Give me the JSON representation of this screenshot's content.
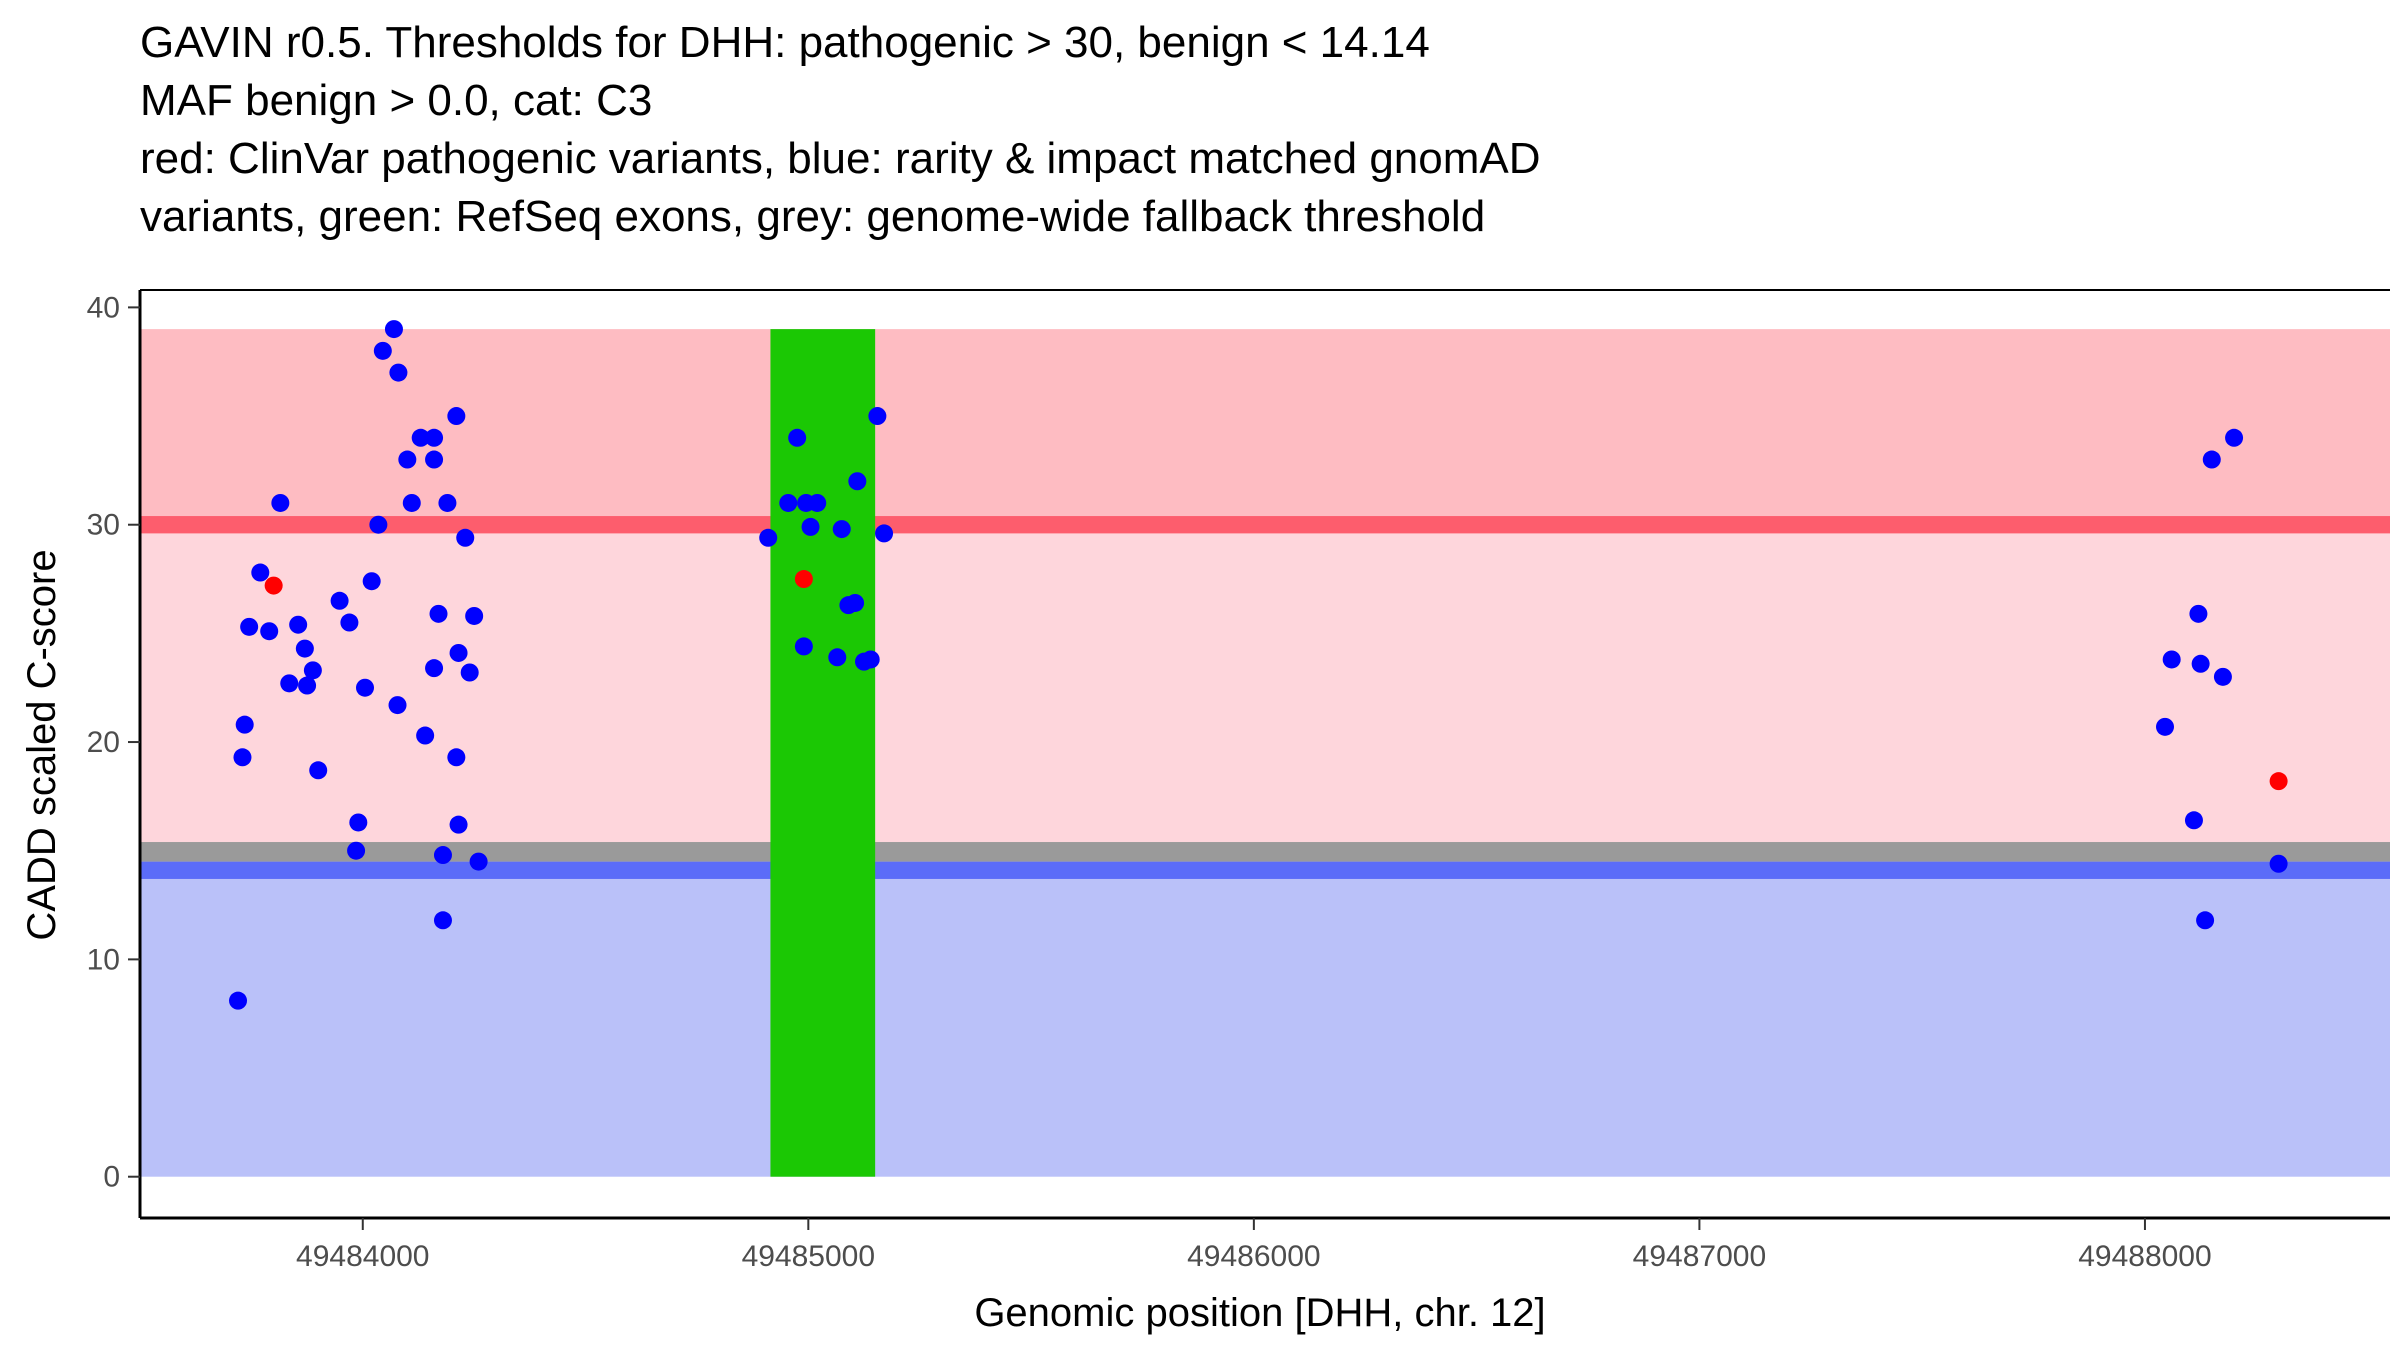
{
  "chart_data": {
    "type": "scatter",
    "title_lines": [
      "GAVIN r0.5. Thresholds for DHH: pathogenic > 30, benign < 14.14",
      "MAF benign > 0.0, cat: C3",
      "red: ClinVar pathogenic variants, blue: rarity & impact matched gnomAD",
      "variants, green: RefSeq exons, grey: genome-wide fallback threshold"
    ],
    "xlabel": "Genomic position [DHH, chr. 12]",
    "ylabel": "CADD scaled C-score",
    "xlim": [
      49483500,
      49488550
    ],
    "ylim": [
      -1.9,
      40.8
    ],
    "x_ticks": [
      49484000,
      49485000,
      49486000,
      49487000,
      49488000
    ],
    "x_tick_labels": [
      "49484000",
      "49485000",
      "49486000",
      "49487000",
      "49488000"
    ],
    "y_ticks": [
      0,
      10,
      20,
      30,
      40
    ],
    "y_tick_labels": [
      "0",
      "10",
      "20",
      "30",
      "40"
    ],
    "bands": [
      {
        "name": "benign-region",
        "y0": 0,
        "y1": 13.7,
        "color": "#bac1f9"
      },
      {
        "name": "benign-threshold",
        "y0": 13.7,
        "y1": 14.5,
        "color": "#5b6cf8"
      },
      {
        "name": "fallback-threshold",
        "y0": 14.5,
        "y1": 15.4,
        "color": "#9a9a9a"
      },
      {
        "name": "intermediate-region",
        "y0": 15.4,
        "y1": 29.6,
        "color": "#fed6dc"
      },
      {
        "name": "pathogenic-threshold",
        "y0": 29.6,
        "y1": 30.4,
        "color": "#fd5d6d"
      },
      {
        "name": "pathogenic-region",
        "y0": 30.4,
        "y1": 39,
        "color": "#febcc2"
      }
    ],
    "exons": [
      {
        "x0": 49484915,
        "x1": 49485150,
        "y0": 0,
        "y1": 39,
        "color": "#1bc804"
      }
    ],
    "series": [
      {
        "name": "gnomAD variants",
        "color": "#0000fe",
        "points": [
          [
            49483720,
            8.1
          ],
          [
            49483730,
            19.3
          ],
          [
            49483735,
            20.8
          ],
          [
            49483745,
            25.3
          ],
          [
            49483770,
            27.8
          ],
          [
            49483790,
            25.1
          ],
          [
            49483815,
            31.0
          ],
          [
            49483835,
            22.7
          ],
          [
            49483855,
            25.4
          ],
          [
            49483870,
            24.3
          ],
          [
            49483875,
            22.6
          ],
          [
            49483888,
            23.3
          ],
          [
            49483900,
            18.7
          ],
          [
            49483948,
            26.5
          ],
          [
            49483970,
            25.5
          ],
          [
            49483985,
            15.0
          ],
          [
            49483990,
            16.3
          ],
          [
            49484005,
            22.5
          ],
          [
            49484020,
            27.4
          ],
          [
            49484035,
            30.0
          ],
          [
            49484045,
            38.0
          ],
          [
            49484070,
            39.0
          ],
          [
            49484078,
            21.7
          ],
          [
            49484080,
            37.0
          ],
          [
            49484100,
            33.0
          ],
          [
            49484110,
            31.0
          ],
          [
            49484130,
            34.0
          ],
          [
            49484140,
            20.3
          ],
          [
            49484160,
            23.4
          ],
          [
            49484160,
            34.0
          ],
          [
            49484160,
            33.0
          ],
          [
            49484170,
            25.9
          ],
          [
            49484180,
            14.8
          ],
          [
            49484180,
            11.8
          ],
          [
            49484190,
            31.0
          ],
          [
            49484210,
            35.0
          ],
          [
            49484210,
            19.3
          ],
          [
            49484215,
            16.2
          ],
          [
            49484215,
            24.1
          ],
          [
            49484230,
            29.4
          ],
          [
            49484240,
            23.2
          ],
          [
            49484250,
            25.8
          ],
          [
            49484260,
            14.5
          ],
          [
            49484910,
            29.4
          ],
          [
            49484955,
            31.0
          ],
          [
            49484975,
            34.0
          ],
          [
            49484990,
            24.4
          ],
          [
            49484995,
            31.0
          ],
          [
            49485005,
            29.9
          ],
          [
            49485020,
            31.0
          ],
          [
            49485065,
            23.9
          ],
          [
            49485075,
            29.8
          ],
          [
            49485090,
            26.3
          ],
          [
            49485105,
            26.4
          ],
          [
            49485110,
            32.0
          ],
          [
            49485125,
            23.7
          ],
          [
            49485140,
            23.8
          ],
          [
            49485155,
            35.0
          ],
          [
            49485170,
            29.6
          ],
          [
            49488045,
            20.7
          ],
          [
            49488060,
            23.8
          ],
          [
            49488110,
            16.4
          ],
          [
            49488120,
            25.9
          ],
          [
            49488125,
            23.6
          ],
          [
            49488135,
            11.8
          ],
          [
            49488150,
            33.0
          ],
          [
            49488175,
            23.0
          ],
          [
            49488200,
            34.0
          ],
          [
            49488300,
            14.4
          ]
        ]
      },
      {
        "name": "ClinVar pathogenic variants",
        "color": "#ff0000",
        "points": [
          [
            49483800,
            27.2
          ],
          [
            49484990,
            27.5
          ],
          [
            49488300,
            18.2
          ]
        ]
      }
    ]
  }
}
